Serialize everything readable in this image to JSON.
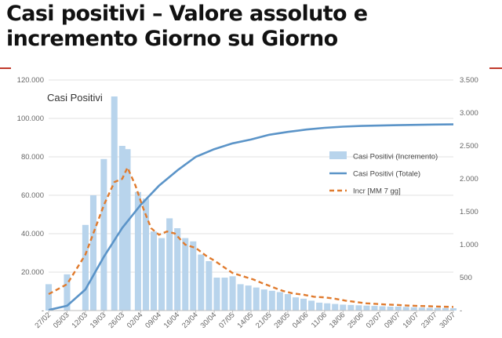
{
  "page": {
    "heading": "Casi positivi – Valore assoluto e incremento Giorno su Giorno",
    "accent_color": "#c0392b"
  },
  "chart_data": {
    "type": "bar",
    "title": "Casi Positivi",
    "colors": {
      "bars": "#b8d4ec",
      "total_line": "#5b94c8",
      "moving_avg": "#e07b2e"
    },
    "x_tick_labels": [
      "27/02",
      "05/03",
      "12/03",
      "19/03",
      "26/03",
      "02/04",
      "09/04",
      "16/04",
      "23/04",
      "30/04",
      "07/05",
      "14/05",
      "21/05",
      "28/05",
      "04/06",
      "11/06",
      "18/06",
      "25/06",
      "02/07",
      "09/07",
      "16/07",
      "23/07",
      "30/07"
    ],
    "left_axis": {
      "ylim": [
        0,
        120000
      ],
      "ticks": [
        "-",
        "20.000",
        "40.000",
        "60.000",
        "80.000",
        "100.000",
        "120.000"
      ]
    },
    "right_axis": {
      "ylim": [
        0,
        3500
      ],
      "ticks": [
        "-",
        "500",
        "1.000",
        "1.500",
        "2.000",
        "2.500",
        "3.000",
        "3.500"
      ]
    },
    "series": [
      {
        "name": "Casi Positivi (Incremento)",
        "type": "bar",
        "axis": "right",
        "points": [
          [
            0,
            400
          ],
          [
            7,
            550
          ],
          [
            14,
            1300
          ],
          [
            17,
            1750
          ],
          [
            21,
            2300
          ],
          [
            25,
            3250
          ],
          [
            28,
            2500
          ],
          [
            30,
            2450
          ],
          [
            34,
            1800
          ],
          [
            37,
            1700
          ],
          [
            40,
            1200
          ],
          [
            43,
            1100
          ],
          [
            46,
            1400
          ],
          [
            49,
            1250
          ],
          [
            52,
            1100
          ],
          [
            55,
            1050
          ],
          [
            58,
            850
          ],
          [
            61,
            750
          ],
          [
            64,
            500
          ],
          [
            67,
            500
          ],
          [
            70,
            520
          ],
          [
            73,
            400
          ],
          [
            76,
            380
          ],
          [
            79,
            350
          ],
          [
            82,
            320
          ],
          [
            85,
            300
          ],
          [
            88,
            280
          ],
          [
            91,
            250
          ],
          [
            94,
            200
          ],
          [
            97,
            180
          ],
          [
            100,
            150
          ],
          [
            103,
            120
          ],
          [
            106,
            110
          ],
          [
            109,
            100
          ],
          [
            112,
            90
          ],
          [
            115,
            85
          ],
          [
            118,
            80
          ],
          [
            121,
            75
          ],
          [
            124,
            70
          ],
          [
            127,
            65
          ],
          [
            130,
            60
          ],
          [
            133,
            60
          ],
          [
            136,
            55
          ],
          [
            139,
            50
          ],
          [
            142,
            45
          ],
          [
            145,
            40
          ],
          [
            148,
            40
          ],
          [
            151,
            38
          ],
          [
            154,
            35
          ]
        ]
      },
      {
        "name": "Casi Positivi (Totale)",
        "type": "line",
        "axis": "left",
        "points": [
          [
            0,
            300
          ],
          [
            7,
            2500
          ],
          [
            14,
            11000
          ],
          [
            21,
            28000
          ],
          [
            28,
            43000
          ],
          [
            35,
            55000
          ],
          [
            42,
            65000
          ],
          [
            49,
            73000
          ],
          [
            56,
            80000
          ],
          [
            63,
            84000
          ],
          [
            70,
            87000
          ],
          [
            77,
            89000
          ],
          [
            84,
            91500
          ],
          [
            91,
            93000
          ],
          [
            98,
            94200
          ],
          [
            105,
            95100
          ],
          [
            112,
            95700
          ],
          [
            119,
            96100
          ],
          [
            126,
            96300
          ],
          [
            133,
            96500
          ],
          [
            140,
            96650
          ],
          [
            147,
            96800
          ],
          [
            154,
            96900
          ]
        ]
      },
      {
        "name": "Incr [MM 7 gg]",
        "type": "line",
        "axis": "right",
        "points": [
          [
            0,
            250
          ],
          [
            7,
            400
          ],
          [
            14,
            850
          ],
          [
            21,
            1600
          ],
          [
            25,
            1950
          ],
          [
            28,
            2000
          ],
          [
            30,
            2170
          ],
          [
            33,
            1900
          ],
          [
            36,
            1550
          ],
          [
            39,
            1250
          ],
          [
            42,
            1150
          ],
          [
            45,
            1200
          ],
          [
            48,
            1170
          ],
          [
            52,
            1000
          ],
          [
            56,
            950
          ],
          [
            60,
            830
          ],
          [
            63,
            760
          ],
          [
            67,
            650
          ],
          [
            70,
            570
          ],
          [
            74,
            520
          ],
          [
            78,
            470
          ],
          [
            81,
            420
          ],
          [
            85,
            360
          ],
          [
            89,
            300
          ],
          [
            93,
            260
          ],
          [
            97,
            240
          ],
          [
            101,
            210
          ],
          [
            105,
            200
          ],
          [
            109,
            180
          ],
          [
            113,
            150
          ],
          [
            117,
            130
          ],
          [
            121,
            110
          ],
          [
            125,
            100
          ],
          [
            129,
            90
          ],
          [
            133,
            85
          ],
          [
            137,
            75
          ],
          [
            141,
            70
          ],
          [
            145,
            65
          ],
          [
            149,
            60
          ],
          [
            154,
            55
          ]
        ]
      }
    ],
    "legend_position": "right"
  }
}
